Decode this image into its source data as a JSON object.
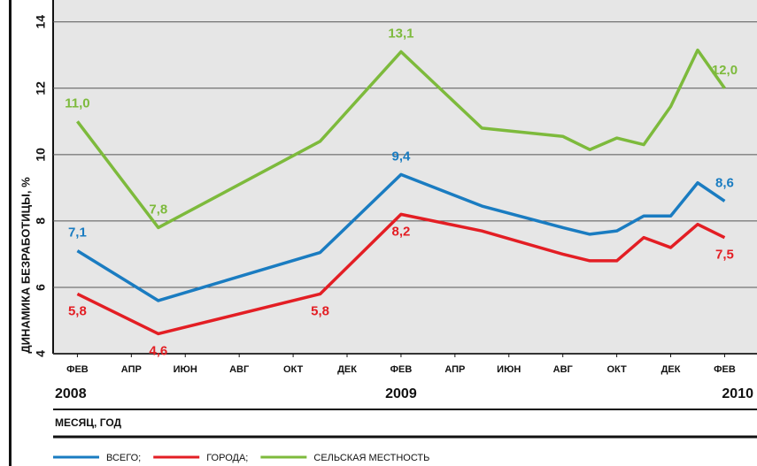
{
  "chart_data": {
    "type": "line",
    "y_label": "ДИНАМИКА БЕЗРАБОТИЦЫ, %",
    "x_label": "МЕСЯЦ, ГОД",
    "x": [
      0,
      3,
      9,
      12,
      15,
      18,
      19,
      20,
      21,
      22,
      23,
      24
    ],
    "xlim": [
      -0.9,
      25.2
    ],
    "xticks": [
      {
        "value": 0,
        "label": "ФЕВ"
      },
      {
        "value": 2,
        "label": "АПР"
      },
      {
        "value": 4,
        "label": "ИЮН"
      },
      {
        "value": 6,
        "label": "АВГ"
      },
      {
        "value": 8,
        "label": "ОКТ"
      },
      {
        "value": 10,
        "label": "ДЕК"
      },
      {
        "value": 12,
        "label": "ФЕВ"
      },
      {
        "value": 14,
        "label": "АПР"
      },
      {
        "value": 16,
        "label": "ИЮН"
      },
      {
        "value": 18,
        "label": "АВГ"
      },
      {
        "value": 20,
        "label": "ОКТ"
      },
      {
        "value": 22,
        "label": "ДЕК"
      },
      {
        "value": 24,
        "label": "ФЕВ"
      }
    ],
    "year_labels": [
      {
        "value": 0,
        "label": "2008"
      },
      {
        "value": 12,
        "label": "2009"
      },
      {
        "value": 24,
        "label": "2010"
      }
    ],
    "ylim": [
      4,
      14.5
    ],
    "yticks": [
      4,
      6,
      8,
      10,
      12,
      14
    ],
    "grid": true,
    "series": [
      {
        "name": "СЕЛЬСКАЯ МЕСТНОСТЬ",
        "color": "#7dba3c",
        "values": [
          11.0,
          7.8,
          10.4,
          13.1,
          10.8,
          10.55,
          10.15,
          10.5,
          10.3,
          11.45,
          13.15,
          12.0
        ],
        "value_labels": [
          "11,0",
          "7,8",
          null,
          "13,1",
          null,
          null,
          null,
          null,
          null,
          null,
          null,
          "12,0"
        ]
      },
      {
        "name": "ВСЕГО;",
        "color": "#1a7cc1",
        "values": [
          7.1,
          5.6,
          7.05,
          9.4,
          8.45,
          7.8,
          7.6,
          7.7,
          8.15,
          8.15,
          9.15,
          8.6
        ],
        "value_labels": [
          "7,1",
          null,
          null,
          "9,4",
          null,
          null,
          null,
          null,
          null,
          null,
          null,
          "8,6"
        ]
      },
      {
        "name": "ГОРОДА;",
        "color": "#e31e24",
        "values": [
          5.8,
          4.6,
          5.8,
          8.2,
          7.7,
          7.0,
          6.8,
          6.8,
          7.5,
          7.2,
          7.9,
          7.5
        ],
        "value_labels": [
          "5,8",
          "4,6",
          "5,8",
          "8,2",
          null,
          null,
          null,
          null,
          null,
          null,
          null,
          "7,5"
        ]
      }
    ]
  }
}
